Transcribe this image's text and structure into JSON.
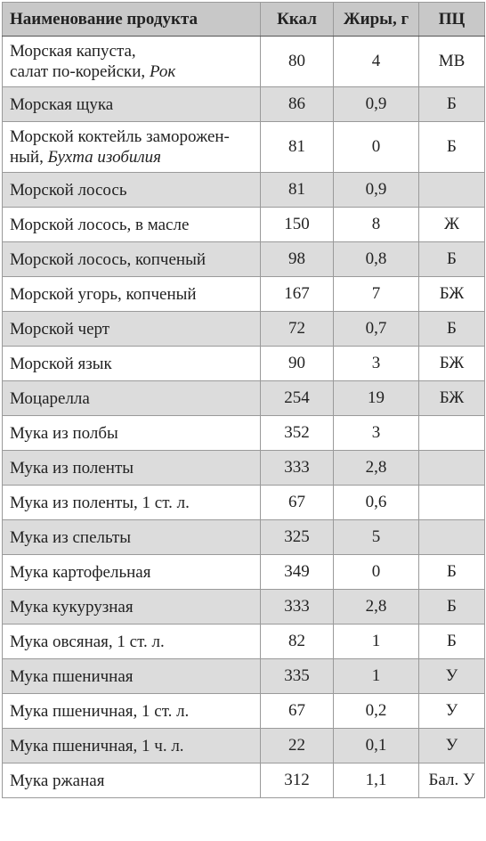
{
  "table": {
    "headers": {
      "name": "Наименование продукта",
      "kcal": "Ккал",
      "fat": "Жиры, г",
      "pc": "ПЦ"
    },
    "rows": [
      {
        "line1": "Морская капуста,",
        "line2": "салат по-корейски, ",
        "line2_italic": "Рок",
        "kcal": "80",
        "fat": "4",
        "pc": "МВ"
      },
      {
        "line1": "Морская щука",
        "kcal": "86",
        "fat": "0,9",
        "pc": "Б"
      },
      {
        "line1": "Морской коктейль заморожен-",
        "line2": "ный, ",
        "line2_italic": "Бухта изобилия",
        "kcal": "81",
        "fat": "0",
        "pc": "Б"
      },
      {
        "line1": "Морской лосось",
        "kcal": "81",
        "fat": "0,9",
        "pc": ""
      },
      {
        "line1": "Морской лосось, в масле",
        "kcal": "150",
        "fat": "8",
        "pc": "Ж"
      },
      {
        "line1": "Морской лосось, копченый",
        "kcal": "98",
        "fat": "0,8",
        "pc": "Б"
      },
      {
        "line1": "Морской угорь, копченый",
        "kcal": "167",
        "fat": "7",
        "pc": "БЖ"
      },
      {
        "line1": "Морской черт",
        "kcal": "72",
        "fat": "0,7",
        "pc": "Б"
      },
      {
        "line1": "Морской язык",
        "kcal": "90",
        "fat": "3",
        "pc": "БЖ"
      },
      {
        "line1": "Моцарелла",
        "kcal": "254",
        "fat": "19",
        "pc": "БЖ"
      },
      {
        "line1": "Мука из полбы",
        "kcal": "352",
        "fat": "3",
        "pc": ""
      },
      {
        "line1": "Мука из поленты",
        "kcal": "333",
        "fat": "2,8",
        "pc": ""
      },
      {
        "line1": "Мука из поленты, 1 ст. л.",
        "kcal": "67",
        "fat": "0,6",
        "pc": ""
      },
      {
        "line1": "Мука из спельты",
        "kcal": "325",
        "fat": "5",
        "pc": ""
      },
      {
        "line1": "Мука картофельная",
        "kcal": "349",
        "fat": "0",
        "pc": "Б"
      },
      {
        "line1": "Мука кукурузная",
        "kcal": "333",
        "fat": "2,8",
        "pc": "Б"
      },
      {
        "line1": "Мука овсяная, 1 ст. л.",
        "kcal": "82",
        "fat": "1",
        "pc": "Б"
      },
      {
        "line1": "Мука пшеничная",
        "kcal": "335",
        "fat": "1",
        "pc": "У"
      },
      {
        "line1": "Мука пшеничная, 1 ст. л.",
        "kcal": "67",
        "fat": "0,2",
        "pc": "У"
      },
      {
        "line1": "Мука пшеничная, 1 ч. л.",
        "kcal": "22",
        "fat": "0,1",
        "pc": "У"
      },
      {
        "line1": "Мука ржаная",
        "kcal": "312",
        "fat": "1,1",
        "pc": "Бал. У"
      }
    ]
  }
}
